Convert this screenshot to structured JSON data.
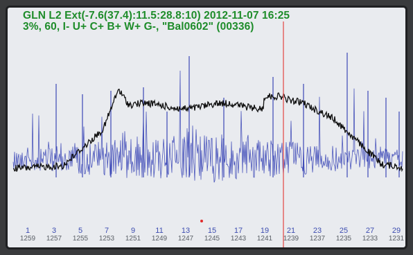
{
  "header": {
    "line1": "GLN L2 Ext(-7.6(37.4):11.5:28.8:10) 2012-11-07 16:25",
    "line2": "3%, 60, I- U+ C+ B+ W+ G-, \"Bal0602\" (00336)"
  },
  "ticks": [
    {
      "top": "1",
      "bottom": "1259"
    },
    {
      "top": "3",
      "bottom": "1257"
    },
    {
      "top": "5",
      "bottom": "1255"
    },
    {
      "top": "7",
      "bottom": "1253"
    },
    {
      "top": "9",
      "bottom": "1251"
    },
    {
      "top": "11",
      "bottom": "1249"
    },
    {
      "top": "13",
      "bottom": "1247"
    },
    {
      "top": "15",
      "bottom": "1245"
    },
    {
      "top": "17",
      "bottom": "1243"
    },
    {
      "top": "19",
      "bottom": "1241"
    },
    {
      "top": "21",
      "bottom": "1239"
    },
    {
      "top": "23",
      "bottom": "1237"
    },
    {
      "top": "25",
      "bottom": "1235"
    },
    {
      "top": "27",
      "bottom": "1233"
    },
    {
      "top": "29",
      "bottom": "1231"
    }
  ],
  "colors": {
    "header_text": "#1e8c2a",
    "blue_trace": "#3a46b6",
    "black_trace": "#111111",
    "marker_line": "#e35b5b"
  }
}
